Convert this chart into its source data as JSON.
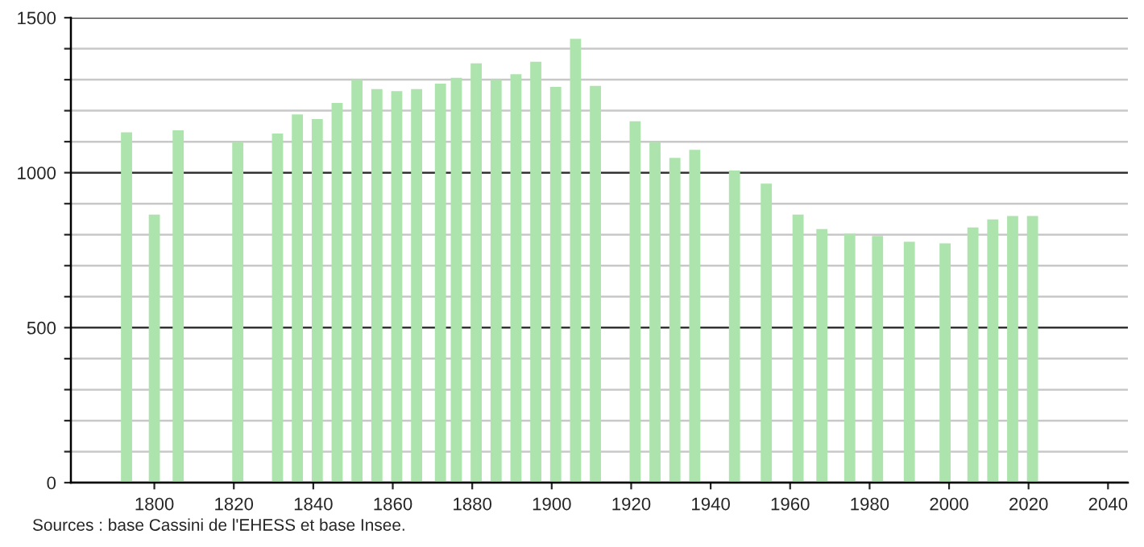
{
  "chart_data": {
    "type": "bar",
    "x": [
      1793,
      1800,
      1806,
      1821,
      1831,
      1836,
      1841,
      1846,
      1851,
      1856,
      1861,
      1866,
      1872,
      1876,
      1881,
      1886,
      1891,
      1896,
      1901,
      1906,
      1911,
      1921,
      1926,
      1931,
      1936,
      1946,
      1954,
      1962,
      1968,
      1975,
      1982,
      1990,
      1999,
      2006,
      2011,
      2016,
      2021
    ],
    "values": [
      1130,
      865,
      1137,
      1099,
      1126,
      1188,
      1173,
      1225,
      1301,
      1270,
      1263,
      1270,
      1287,
      1306,
      1353,
      1301,
      1318,
      1358,
      1277,
      1432,
      1280,
      1166,
      1099,
      1048,
      1074,
      1007,
      965,
      865,
      818,
      803,
      796,
      777,
      772,
      823,
      849,
      860,
      860
    ],
    "color": "#ade4ad",
    "xlim": [
      1779,
      2045
    ],
    "xticks": [
      1800,
      1820,
      1840,
      1860,
      1880,
      1900,
      1920,
      1940,
      1960,
      1980,
      2000,
      2020,
      2040
    ],
    "ylim": [
      0,
      1500
    ],
    "yticks": [
      0,
      {
        "value": 100,
        "label": null
      },
      {
        "value": 200,
        "label": null
      },
      {
        "value": 300,
        "label": null
      },
      {
        "value": 400,
        "label": null
      },
      500,
      {
        "value": 600,
        "label": null
      },
      {
        "value": 700,
        "label": null
      },
      {
        "value": 800,
        "label": null
      },
      {
        "value": 900,
        "label": null
      },
      1000,
      {
        "value": 1100,
        "label": null
      },
      {
        "value": 1200,
        "label": null
      },
      {
        "value": 1300,
        "label": null
      },
      {
        "value": 1400,
        "label": null
      },
      1500
    ],
    "grid": "y",
    "annotations": [
      "Sources : base Cassini de l'EHESS et base Insee."
    ]
  }
}
